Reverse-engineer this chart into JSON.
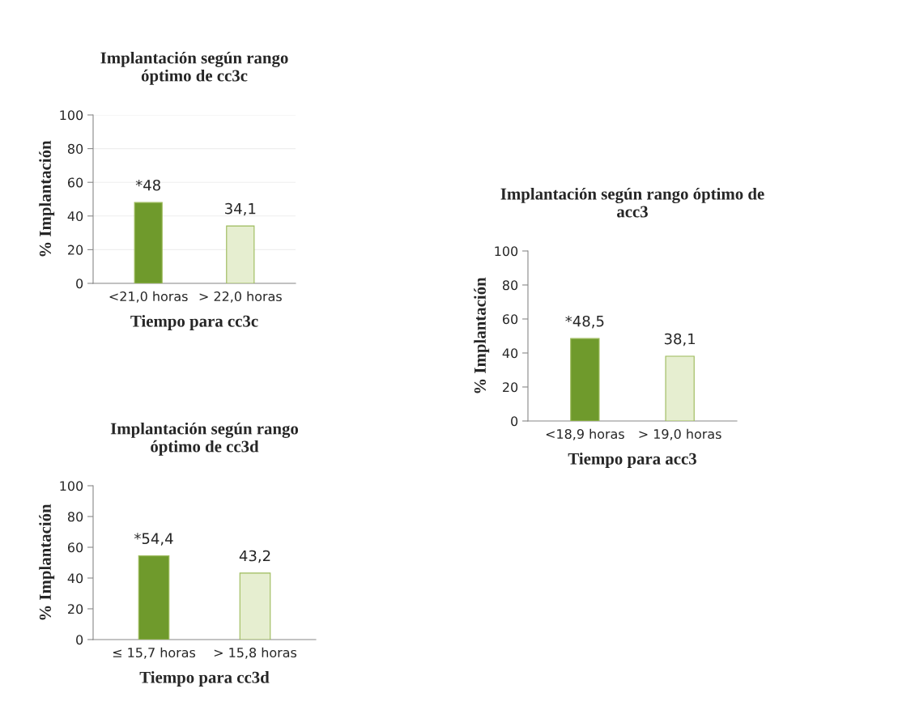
{
  "chart_data": [
    {
      "type": "bar",
      "title": "Implantación según rango\nóptimo de cc3c",
      "xlabel": "Tiempo para cc3c",
      "ylabel": "% Implantación",
      "categories": [
        "<21,0 horas",
        "> 22,0 horas"
      ],
      "values": [
        48,
        34.1
      ],
      "colors": [
        "#6f9a2c",
        "#e6eed0"
      ],
      "value_labels": [
        "*48",
        "34,1"
      ],
      "ylim": [
        0,
        100
      ],
      "yticks": [
        0,
        20,
        40,
        60,
        80,
        100
      ],
      "grid": "y"
    },
    {
      "type": "bar",
      "title": "Implantación según rango óptimo de\nacc3",
      "xlabel": "Tiempo para acc3",
      "ylabel": "% Implantación",
      "categories": [
        "<18,9 horas",
        "> 19,0 horas"
      ],
      "values": [
        48.5,
        38.1
      ],
      "colors": [
        "#6f9a2c",
        "#e6eed0"
      ],
      "value_labels": [
        "*48,5",
        "38,1"
      ],
      "ylim": [
        0,
        100
      ],
      "yticks": [
        0,
        20,
        40,
        60,
        80,
        100
      ],
      "grid": false
    },
    {
      "type": "bar",
      "title": "Implantación según rango\nóptimo de cc3d",
      "xlabel": "Tiempo para cc3d",
      "ylabel": "% Implantación",
      "categories": [
        "≤ 15,7 horas",
        "> 15,8 horas"
      ],
      "values": [
        54.4,
        43.2
      ],
      "colors": [
        "#6f9a2c",
        "#e6eed0"
      ],
      "value_labels": [
        "*54,4",
        "43,2"
      ],
      "ylim": [
        0,
        100
      ],
      "yticks": [
        0,
        20,
        40,
        60,
        80,
        100
      ],
      "grid": false
    }
  ]
}
